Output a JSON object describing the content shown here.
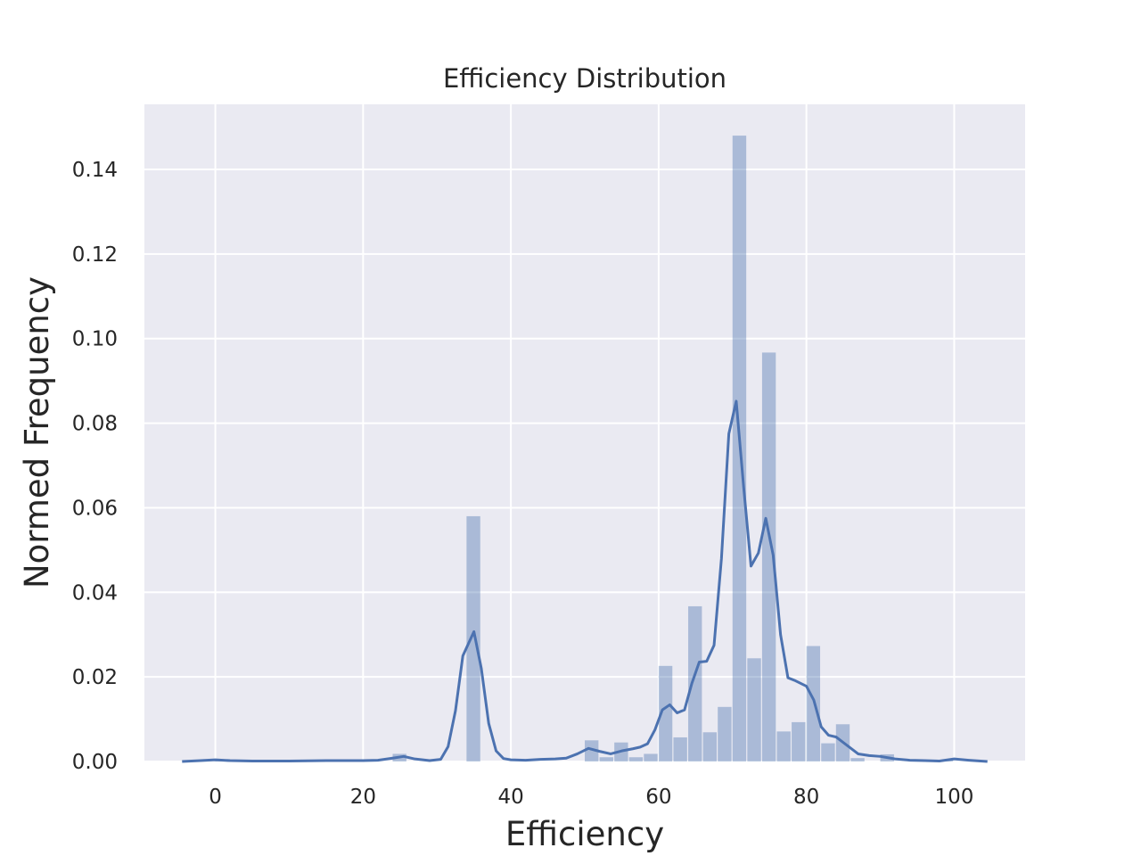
{
  "chart_data": {
    "type": "bar",
    "title": "Efficiency Distribution",
    "xlabel": "Efficiency",
    "ylabel": "Normed Frequency",
    "xlim": [
      -9.6,
      109.6
    ],
    "ylim": [
      0,
      0.1554
    ],
    "xticks": [
      0,
      20,
      40,
      60,
      80,
      100
    ],
    "xtick_labels": [
      "0",
      "20",
      "40",
      "60",
      "80",
      "100"
    ],
    "yticks": [
      0,
      0.02,
      0.04,
      0.06,
      0.08,
      0.1,
      0.12,
      0.14
    ],
    "ytick_labels": [
      "0.00",
      "0.02",
      "0.04",
      "0.06",
      "0.08",
      "0.10",
      "0.12",
      "0.14"
    ],
    "grid": true,
    "colors": {
      "background": "#eaeaf2",
      "grid": "#ffffff",
      "bars": "#4c72b0",
      "line": "#4c72b0"
    },
    "histogram": {
      "bin_edges": [
        0,
        2,
        4,
        6,
        8,
        10,
        12,
        14,
        16,
        18,
        20,
        22,
        24,
        26,
        28,
        30,
        32,
        34,
        36,
        38,
        40,
        42,
        44,
        46,
        48,
        50,
        52,
        54,
        56,
        58,
        60,
        62,
        64,
        66,
        68,
        70,
        72,
        74,
        76,
        78,
        80,
        82,
        84,
        86,
        88,
        90,
        92,
        94,
        96,
        98,
        100
      ],
      "values": [
        0.0003,
        0.0,
        0.0,
        0.0,
        0.0,
        0.0,
        0.0,
        0.0,
        0.0,
        0.0,
        0.0,
        0.0,
        0.0018,
        0.0,
        0.0,
        0.0,
        0.0,
        0.058,
        0.0,
        0.0,
        0.0,
        0.0,
        0.0,
        0.0,
        0.0,
        0.005,
        0.001,
        0.0045,
        0.001,
        0.0018,
        0.0226,
        0.0057,
        0.0367,
        0.0069,
        0.0129,
        0.148,
        0.0244,
        0.0967,
        0.0071,
        0.0093,
        0.0273,
        0.0043,
        0.0088,
        0.0008,
        0.0,
        0.0017,
        0.0,
        0.0,
        0.0,
        0.0003
      ]
    },
    "kde": {
      "x": [
        -4.5,
        -2,
        0,
        2,
        5,
        10,
        15,
        20,
        22,
        24,
        25.5,
        27,
        29,
        30.5,
        31.5,
        32.5,
        33.5,
        35,
        36,
        37,
        38,
        39,
        40,
        42,
        44,
        46,
        47.5,
        49,
        50.5,
        52,
        53.5,
        55,
        56.5,
        57.5,
        58.5,
        59.5,
        60.5,
        61.5,
        62.5,
        63.5,
        64.5,
        65.5,
        66.5,
        67.5,
        68.5,
        69.5,
        70.5,
        71.5,
        72.5,
        73.5,
        74.5,
        75.5,
        76.5,
        77.5,
        78.5,
        80,
        81,
        82,
        83,
        84,
        85.5,
        87,
        88.5,
        90,
        92,
        94,
        96,
        98,
        100,
        102,
        104.5
      ],
      "y": [
        0,
        0.0002,
        0.0004,
        0.0002,
        0.0001,
        0.0001,
        0.0002,
        0.0002,
        0.0003,
        0.0008,
        0.0012,
        0.0006,
        0.0002,
        0.0005,
        0.0035,
        0.012,
        0.025,
        0.0307,
        0.022,
        0.009,
        0.0025,
        0.0007,
        0.0004,
        0.0003,
        0.0005,
        0.0006,
        0.0008,
        0.0018,
        0.0031,
        0.0024,
        0.0018,
        0.0025,
        0.003,
        0.0034,
        0.0042,
        0.0075,
        0.0122,
        0.0134,
        0.0115,
        0.0122,
        0.0185,
        0.0235,
        0.0237,
        0.0275,
        0.048,
        0.0775,
        0.0852,
        0.065,
        0.0462,
        0.0493,
        0.0575,
        0.0488,
        0.03,
        0.0198,
        0.0191,
        0.0178,
        0.0145,
        0.0082,
        0.0062,
        0.0058,
        0.0038,
        0.0018,
        0.0014,
        0.0012,
        0.0006,
        0.0003,
        0.0002,
        0.0001,
        0.0006,
        0.0003,
        0
      ]
    }
  }
}
